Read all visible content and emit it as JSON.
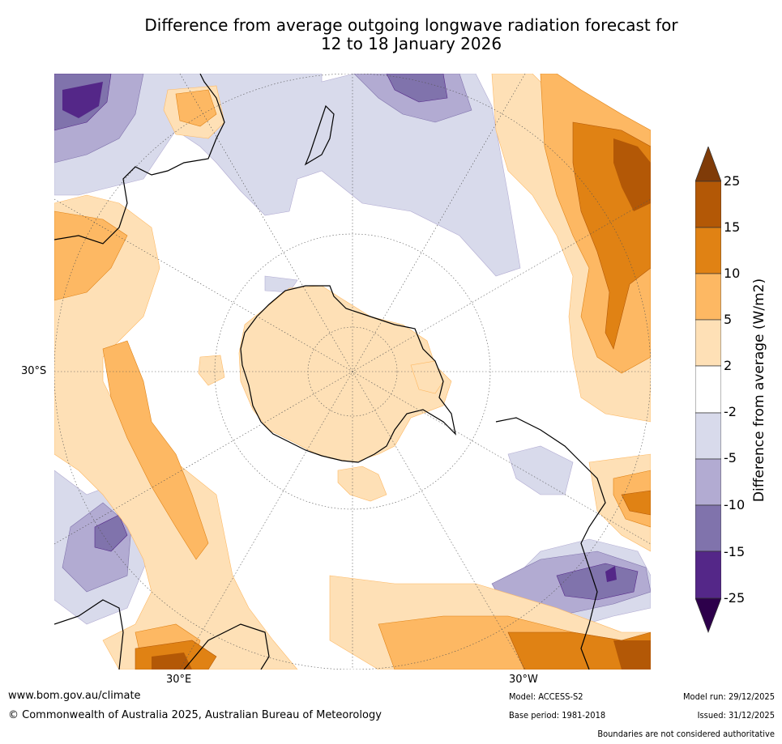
{
  "title": {
    "line1": "Difference from average outgoing longwave radiation forecast for",
    "line2": "12 to 18 January 2026"
  },
  "map": {
    "projection": "South polar stereographic",
    "latitude_labels": [
      "30°S"
    ],
    "longitude_labels": [
      "30°E",
      "30°W"
    ]
  },
  "colorbar": {
    "label": "Difference from average (W/m2)",
    "ticks": [
      "25",
      "15",
      "10",
      "5",
      "2",
      "-2",
      "-5",
      "-10",
      "-15",
      "-25"
    ],
    "colors": [
      "#7f3b08",
      "#b35806",
      "#e08214",
      "#fdb863",
      "#fee0b6",
      "#ffffff",
      "#d8daeb",
      "#b2abd2",
      "#8073ac",
      "#542788",
      "#2d004b"
    ]
  },
  "footer": {
    "website": "www.bom.gov.au/climate",
    "copyright": "© Commonwealth of Australia 2025, Australian Bureau of Meteorology",
    "model": "Model: ACCESS-S2",
    "base_period": "Base period: 1981-2018",
    "model_run": "Model run: 29/12/2025",
    "issued": "Issued: 31/12/2025",
    "disclaimer": "Boundaries are not considered authoritative"
  }
}
